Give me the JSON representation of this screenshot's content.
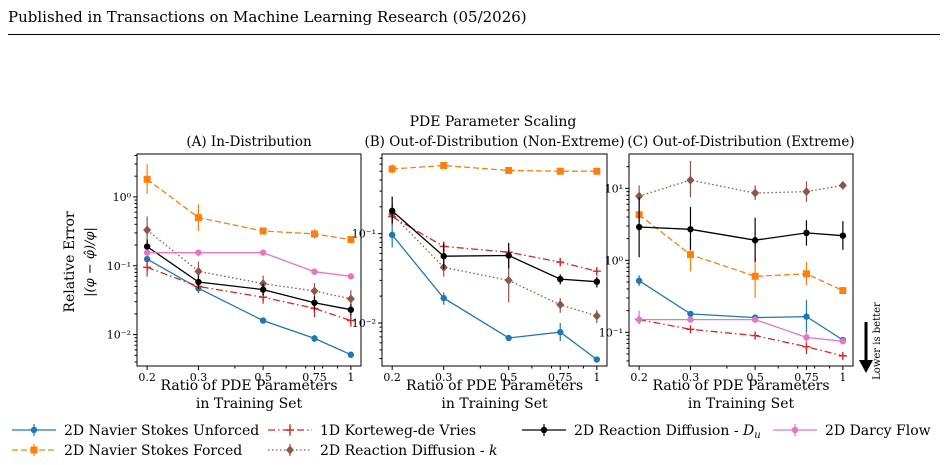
{
  "header": {
    "text": "Published in Transactions on Machine Learning Research (05/2026)"
  },
  "figure": {
    "suptitle": "PDE Parameter Scaling",
    "shared_ylabel": "Relative Error",
    "ylabel_formula": "|(φ − φ̂)/φ|",
    "xlabel_line1": "Ratio of PDE Parameters",
    "xlabel_line2": "in Training Set",
    "annotation": "Lower is better",
    "x_tick_labels": [
      "0.2",
      "0.3",
      "0.5",
      "0.75",
      "1"
    ],
    "legend": [
      {
        "key": "nsu",
        "label": "2D Navier Stokes Unforced",
        "color": "#1f77b4",
        "marker": "circle",
        "dash": "solid"
      },
      {
        "key": "nsf",
        "label": "2D Navier Stokes Forced",
        "color": "#ff7f0e",
        "marker": "square",
        "dash": "dashed"
      },
      {
        "key": "kdv",
        "label": "1D Korteweg-de Vries",
        "color": "#d62728",
        "marker": "plus",
        "dash": "dashdot"
      },
      {
        "key": "rdk",
        "label": "2D Reaction Diffusion - k",
        "color": "#8c564b",
        "marker": "diamond",
        "dash": "dotted"
      },
      {
        "key": "rdu",
        "label": "2D Reaction Diffusion - D_u",
        "color": "#000000",
        "marker": "circle",
        "dash": "solid"
      },
      {
        "key": "darcy",
        "label": "2D Darcy Flow",
        "color": "#e377c2",
        "marker": "circle",
        "dash": "solid"
      }
    ]
  },
  "chart_data": [
    {
      "type": "line",
      "title": "(A) In-Distribution",
      "x": [
        0.2,
        0.3,
        0.5,
        0.75,
        1.0
      ],
      "log_y": true,
      "ylim": [
        0.0035,
        4.2
      ],
      "y_ticks": [
        {
          "v": 0.01,
          "label": "10⁻²"
        },
        {
          "v": 0.1,
          "label": "10⁻¹"
        },
        {
          "v": 1,
          "label": "10⁰"
        }
      ],
      "series": [
        {
          "key": "nsu",
          "values": [
            0.125,
            0.047,
            0.016,
            0.0088,
            0.0051
          ],
          "err": [
            [
              0.11,
              0.14
            ],
            [
              0.04,
              0.055
            ],
            [
              0.015,
              0.017
            ],
            [
              0.0078,
              0.0099
            ],
            [
              0.0048,
              0.0054
            ]
          ]
        },
        {
          "key": "nsf",
          "values": [
            1.8,
            0.5,
            0.32,
            0.29,
            0.24
          ],
          "err": [
            [
              1.1,
              3.0
            ],
            [
              0.32,
              0.78
            ],
            [
              0.29,
              0.35
            ],
            [
              0.25,
              0.34
            ],
            [
              0.22,
              0.26
            ]
          ]
        },
        {
          "key": "kdv",
          "values": [
            0.095,
            0.05,
            0.035,
            0.024,
            0.016
          ],
          "err": [
            [
              0.07,
              0.13
            ],
            [
              0.043,
              0.058
            ],
            [
              0.028,
              0.044
            ],
            [
              0.018,
              0.032
            ],
            [
              0.013,
              0.02
            ]
          ]
        },
        {
          "key": "rdk",
          "values": [
            0.33,
            0.083,
            0.055,
            0.043,
            0.033
          ],
          "err": [
            [
              0.2,
              0.52
            ],
            [
              0.06,
              0.115
            ],
            [
              0.042,
              0.072
            ],
            [
              0.033,
              0.056
            ],
            [
              0.025,
              0.044
            ]
          ]
        },
        {
          "key": "rdu",
          "values": [
            0.19,
            0.058,
            0.045,
            0.029,
            0.023
          ],
          "err": [
            [
              0.15,
              0.24
            ],
            [
              0.046,
              0.073
            ],
            [
              0.037,
              0.055
            ],
            [
              0.023,
              0.036
            ],
            [
              0.019,
              0.028
            ]
          ]
        },
        {
          "key": "darcy",
          "values": [
            0.155,
            0.155,
            0.155,
            0.082,
            0.07
          ],
          "err": [
            [
              0.14,
              0.17
            ],
            [
              0.145,
              0.165
            ],
            [
              0.145,
              0.165
            ],
            [
              0.078,
              0.086
            ],
            [
              0.067,
              0.073
            ]
          ]
        }
      ]
    },
    {
      "type": "line",
      "title": "(B) Out-of-Distribution (Non-Extreme)",
      "x": [
        0.2,
        0.3,
        0.5,
        0.75,
        1.0
      ],
      "log_y": true,
      "ylim": [
        0.0033,
        0.78
      ],
      "y_ticks": [
        {
          "v": 0.01,
          "label": "10⁻²"
        },
        {
          "v": 0.1,
          "label": "10⁻¹"
        }
      ],
      "series": [
        {
          "key": "nsu",
          "values": [
            0.097,
            0.019,
            0.0068,
            0.0079,
            0.0039
          ],
          "err": [
            [
              0.07,
              0.13
            ],
            [
              0.016,
              0.022
            ],
            [
              0.0065,
              0.0071
            ],
            [
              0.0063,
              0.01
            ],
            [
              0.0037,
              0.0041
            ]
          ]
        },
        {
          "key": "nsf",
          "values": [
            0.53,
            0.58,
            0.51,
            0.5,
            0.5
          ],
          "err": [
            [
              0.47,
              0.6
            ],
            [
              0.54,
              0.63
            ],
            [
              0.49,
              0.53
            ],
            [
              0.48,
              0.52
            ],
            [
              0.48,
              0.52
            ]
          ]
        },
        {
          "key": "kdv",
          "values": [
            0.155,
            0.072,
            0.062,
            0.048,
            0.038
          ],
          "err": [
            [
              0.13,
              0.18
            ],
            [
              0.063,
              0.082
            ],
            [
              0.056,
              0.068
            ],
            [
              0.043,
              0.053
            ],
            [
              0.034,
              0.042
            ]
          ]
        },
        {
          "key": "rdk",
          "values": [
            0.165,
            0.042,
            0.03,
            0.016,
            0.012
          ],
          "err": [
            [
              0.12,
              0.22
            ],
            [
              0.033,
              0.054
            ],
            [
              0.017,
              0.052
            ],
            [
              0.013,
              0.019
            ],
            [
              0.01,
              0.014
            ]
          ]
        },
        {
          "key": "rdu",
          "values": [
            0.18,
            0.056,
            0.057,
            0.031,
            0.029
          ],
          "err": [
            [
              0.13,
              0.26
            ],
            [
              0.04,
              0.078
            ],
            [
              0.041,
              0.079
            ],
            [
              0.027,
              0.035
            ],
            [
              0.025,
              0.033
            ]
          ]
        }
      ]
    },
    {
      "type": "line",
      "title": "(C) Out-of-Distribution (Extreme)",
      "x": [
        0.2,
        0.3,
        0.5,
        0.75,
        1.0
      ],
      "log_y": true,
      "ylim": [
        0.034,
        30
      ],
      "y_ticks": [
        {
          "v": 0.1,
          "label": "10⁻¹"
        },
        {
          "v": 1,
          "label": "10⁰"
        },
        {
          "v": 10,
          "label": "10¹"
        }
      ],
      "series": [
        {
          "key": "nsu",
          "values": [
            0.52,
            0.18,
            0.16,
            0.165,
            0.078
          ],
          "err": [
            [
              0.44,
              0.62
            ],
            [
              0.17,
              0.19
            ],
            [
              0.155,
              0.165
            ],
            [
              0.1,
              0.28
            ],
            [
              0.072,
              0.084
            ]
          ]
        },
        {
          "key": "nsf",
          "values": [
            4.3,
            1.2,
            0.6,
            0.65,
            0.38
          ],
          "err": [
            [
              3.4,
              5.4
            ],
            [
              0.7,
              2.0
            ],
            [
              0.3,
              1.1
            ],
            [
              0.45,
              0.95
            ],
            [
              0.35,
              0.41
            ]
          ]
        },
        {
          "key": "kdv",
          "values": [
            0.15,
            0.11,
            0.09,
            0.063,
            0.047
          ],
          "err": [
            [
              0.13,
              0.17
            ],
            [
              0.1,
              0.12
            ],
            [
              0.085,
              0.095
            ],
            [
              0.05,
              0.08
            ],
            [
              0.044,
              0.05
            ]
          ]
        },
        {
          "key": "rdk",
          "values": [
            7.8,
            13.0,
            8.6,
            9.0,
            11.0
          ],
          "err": [
            [
              5.5,
              11.0
            ],
            [
              7.5,
              24.0
            ],
            [
              6.9,
              11.0
            ],
            [
              6.5,
              12.5
            ],
            [
              10.0,
              12.0
            ]
          ]
        },
        {
          "key": "rdu",
          "values": [
            2.9,
            2.7,
            1.9,
            2.4,
            2.2
          ],
          "err": [
            [
              1.1,
              7.5
            ],
            [
              1.4,
              5.5
            ],
            [
              0.95,
              3.9
            ],
            [
              1.6,
              3.6
            ],
            [
              1.4,
              3.5
            ]
          ]
        },
        {
          "key": "darcy",
          "values": [
            0.15,
            0.15,
            0.15,
            0.085,
            0.075
          ],
          "err": [
            [
              0.13,
              0.2
            ],
            [
              0.14,
              0.16
            ],
            [
              0.14,
              0.16
            ],
            [
              0.07,
              0.1
            ],
            [
              0.07,
              0.08
            ]
          ]
        }
      ]
    }
  ]
}
